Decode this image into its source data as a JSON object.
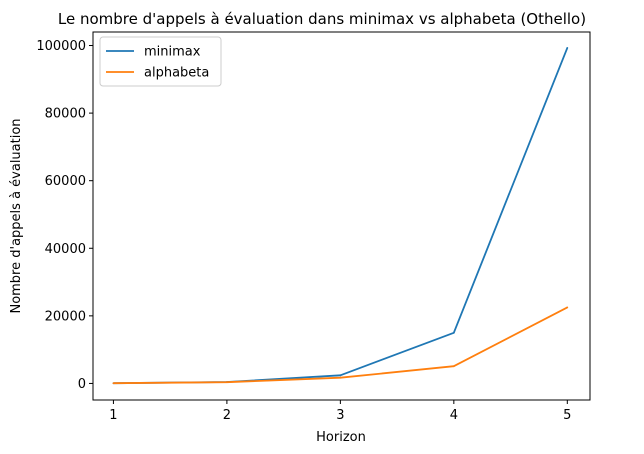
{
  "chart_data": {
    "type": "line",
    "title": "Le nombre d'appels à évaluation dans minimax vs alphabeta (Othello)",
    "xlabel": "Horizon",
    "ylabel": "Nombre d'appels à évaluation",
    "x": [
      1,
      2,
      3,
      4,
      5
    ],
    "xticks": [
      "1",
      "2",
      "3",
      "4",
      "5"
    ],
    "yticks": [
      "0",
      "20000",
      "40000",
      "60000",
      "80000",
      "100000"
    ],
    "xlim": [
      0.82,
      5.2
    ],
    "ylim": [
      -4900,
      104000
    ],
    "grid": false,
    "legend_position": "top-left",
    "series": [
      {
        "name": "minimax",
        "color": "#1f77b4",
        "values": [
          60,
          430,
          2400,
          15000,
          99300
        ]
      },
      {
        "name": "alphabeta",
        "color": "#ff7f0e",
        "values": [
          60,
          380,
          1700,
          5100,
          22500
        ]
      }
    ]
  }
}
